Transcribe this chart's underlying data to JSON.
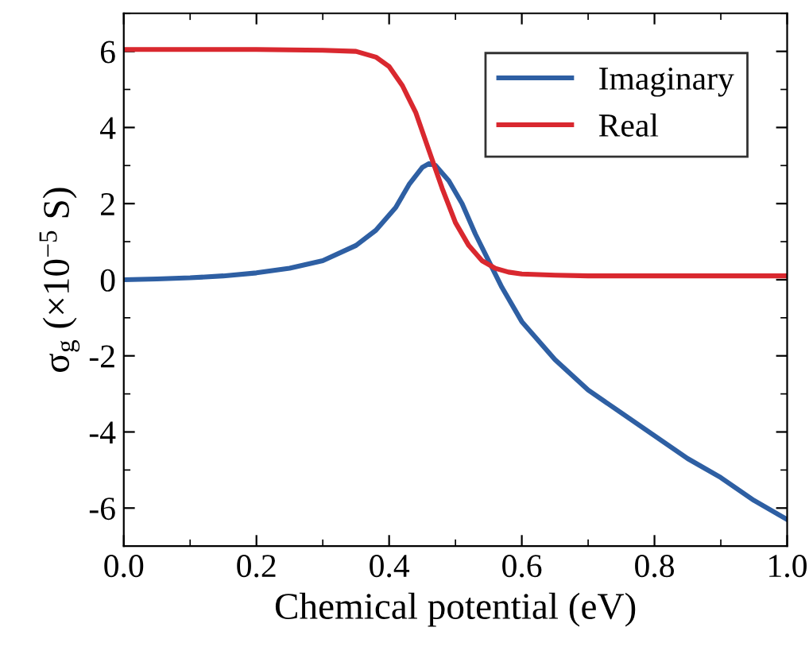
{
  "chart_data": {
    "type": "line",
    "xlabel": "Chemical potential (eV)",
    "ylabel": "σ$_{g}$ (×10$^{−5}$ S)",
    "xlim": [
      0,
      1
    ],
    "ylim": [
      -7,
      7
    ],
    "xticks": [
      {
        "value": 0,
        "label": "0.0"
      },
      0.2,
      0.4,
      0.6,
      0.8,
      {
        "value": 1,
        "label": "1.0"
      }
    ],
    "yticks": [
      -6,
      -4,
      -2,
      0,
      2,
      4,
      6
    ],
    "legend": "top right",
    "grid": false,
    "marker": "none",
    "line_style": "solid",
    "series": [
      {
        "name": "Imaginary",
        "color": "#2e5fa3",
        "x": [
          0,
          0.05,
          0.1,
          0.15,
          0.2,
          0.25,
          0.3,
          0.35,
          0.38,
          0.41,
          0.43,
          0.45,
          0.46,
          0.47,
          0.49,
          0.51,
          0.53,
          0.55,
          0.57,
          0.6,
          0.65,
          0.7,
          0.75,
          0.8,
          0.85,
          0.9,
          0.95,
          1.0
        ],
        "values": [
          0,
          0.02,
          0.05,
          0.1,
          0.18,
          0.3,
          0.5,
          0.9,
          1.3,
          1.9,
          2.5,
          2.95,
          3.05,
          3.0,
          2.6,
          2.0,
          1.2,
          0.5,
          -0.2,
          -1.1,
          -2.1,
          -2.9,
          -3.5,
          -4.1,
          -4.7,
          -5.2,
          -5.8,
          -6.3
        ]
      },
      {
        "name": "Real",
        "color": "#d9282f",
        "x": [
          0,
          0.1,
          0.2,
          0.3,
          0.35,
          0.38,
          0.4,
          0.42,
          0.44,
          0.46,
          0.48,
          0.5,
          0.52,
          0.54,
          0.56,
          0.58,
          0.6,
          0.65,
          0.7,
          0.8,
          0.9,
          1.0
        ],
        "values": [
          6.05,
          6.05,
          6.05,
          6.03,
          6.0,
          5.85,
          5.6,
          5.1,
          4.4,
          3.4,
          2.4,
          1.5,
          0.9,
          0.5,
          0.3,
          0.2,
          0.15,
          0.12,
          0.1,
          0.1,
          0.1,
          0.1
        ]
      }
    ]
  }
}
